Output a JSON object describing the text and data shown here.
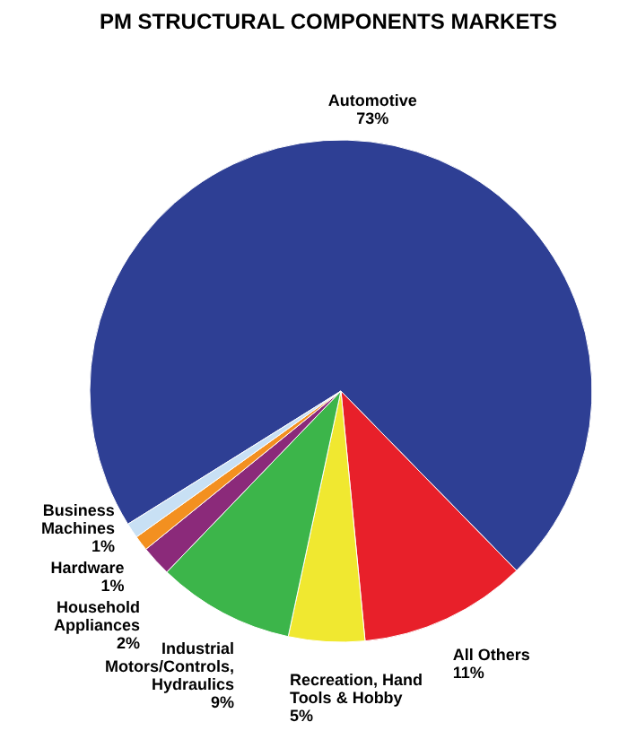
{
  "chart_data": {
    "type": "pie",
    "title": "PM STRUCTURAL COMPONENTS MARKETS",
    "categories": [
      "Automotive",
      "All Others",
      "Recreation, Hand Tools & Hobby",
      "Industrial Motors/Controls, Hydraulics",
      "Household Appliances",
      "Hardware",
      "Business Machines"
    ],
    "values": [
      73,
      11,
      5,
      9,
      2,
      1,
      1
    ],
    "colors": [
      "#2e3f94",
      "#e8202a",
      "#f0e830",
      "#3cb54a",
      "#8b2a7a",
      "#f39020",
      "#c8e0f4"
    ],
    "value_labels": [
      "73%",
      "11%",
      "5%",
      "9%",
      "2%",
      "1%",
      "1%"
    ]
  }
}
